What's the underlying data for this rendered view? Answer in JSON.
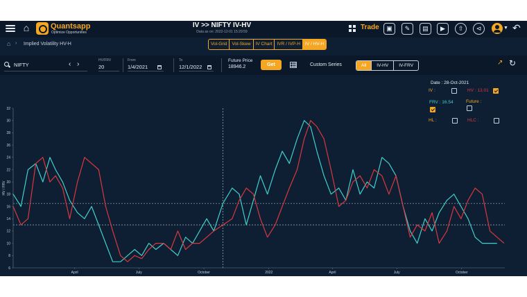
{
  "header": {
    "brand": "Quantsapp",
    "tagline": "Optimize Opportunities",
    "title": "IV >> NIFTY IV-HV",
    "data_as_on": "Data as on: 2022-12-01 15:29:59",
    "trade_label": "Trade",
    "icons": [
      "menu-icon",
      "home-icon",
      "grid-icon",
      "window-icon",
      "edit-icon",
      "chart-icon",
      "video-icon",
      "upload-icon",
      "share-icon",
      "user-icon",
      "back-icon"
    ]
  },
  "breadcrumb": {
    "label": "Implied Volatility HV-H"
  },
  "tabs": [
    {
      "label": "Vol-Grid",
      "active": false
    },
    {
      "label": "Vol-Skew",
      "active": false
    },
    {
      "label": "IV Chart",
      "active": false
    },
    {
      "label": "IVR / IVP-H",
      "active": false
    },
    {
      "label": "IV / HV-H",
      "active": true
    }
  ],
  "controls": {
    "symbol": "NIFTY",
    "hv_frv_label": "HV/FRV",
    "hv_frv_value": "20",
    "from_label": "From",
    "from_value": "1/4/2021",
    "to_label": "To",
    "to_value": "12/1/2022",
    "future_price_label": "Future Price",
    "future_price_value": "18946.2",
    "get_label": "Get",
    "custom_series_label": "Custom Series",
    "modes": [
      {
        "label": "All",
        "active": true
      },
      {
        "label": "IV-HV",
        "active": false
      },
      {
        "label": "IV-FRV",
        "active": false
      }
    ]
  },
  "legend": {
    "date": "Date : 28-Oct-2021",
    "iv": {
      "label": "IV :",
      "checked": false
    },
    "hv": {
      "label": "HV : 13.01",
      "checked": true
    },
    "frv": {
      "label": "FRV : 16.54",
      "checked": true
    },
    "future": {
      "label": "Future :",
      "checked": false
    },
    "hl": {
      "label": "HL :",
      "checked": false
    },
    "hlc": {
      "label": "HLC :",
      "checked": false
    }
  },
  "chart_data": {
    "type": "line",
    "ylabel": "HV / FRV",
    "ylim": [
      6,
      32
    ],
    "yticks": [
      6,
      8,
      10,
      12,
      14,
      16,
      18,
      20,
      22,
      24,
      26,
      28,
      30,
      32
    ],
    "xlabels": [
      "April",
      "July",
      "October",
      "2022",
      "April",
      "July",
      "October"
    ],
    "reference_lines": [
      16.5,
      13.0
    ],
    "cursor_date": "28-Oct-2021",
    "colors": {
      "frv": "#3fd1cc",
      "hv": "#d9383f",
      "reference": "#c6d0dc"
    },
    "series": [
      {
        "name": "FRV",
        "x": [
          "2021-01-04",
          "2021-01-15",
          "2021-01-25",
          "2021-02-05",
          "2021-02-15",
          "2021-02-25",
          "2021-03-05",
          "2021-03-15",
          "2021-03-25",
          "2021-04-05",
          "2021-04-15",
          "2021-04-25",
          "2021-05-05",
          "2021-05-15",
          "2021-05-25",
          "2021-06-05",
          "2021-06-15",
          "2021-06-25",
          "2021-07-05",
          "2021-07-15",
          "2021-07-25",
          "2021-08-05",
          "2021-08-15",
          "2021-08-25",
          "2021-09-05",
          "2021-09-15",
          "2021-09-25",
          "2021-10-05",
          "2021-10-15",
          "2021-10-28",
          "2021-11-10",
          "2021-11-20",
          "2021-11-30",
          "2021-12-10",
          "2021-12-20",
          "2021-12-30",
          "2022-01-10",
          "2022-01-20",
          "2022-01-30",
          "2022-02-10",
          "2022-02-20",
          "2022-03-01",
          "2022-03-10",
          "2022-03-20",
          "2022-03-30",
          "2022-04-10",
          "2022-04-20",
          "2022-04-30",
          "2022-05-10",
          "2022-05-20",
          "2022-05-30",
          "2022-06-10",
          "2022-06-20",
          "2022-06-30",
          "2022-07-10",
          "2022-07-20",
          "2022-07-30",
          "2022-08-10",
          "2022-08-20",
          "2022-08-30",
          "2022-09-10",
          "2022-09-20",
          "2022-09-30",
          "2022-10-10",
          "2022-10-20",
          "2022-10-30",
          "2022-11-10",
          "2022-11-20"
        ],
        "values": [
          18,
          16,
          22,
          23,
          20,
          24,
          22,
          20,
          17,
          15,
          14,
          16,
          13,
          10,
          7,
          7,
          8,
          9,
          8,
          10,
          9,
          10,
          9,
          8,
          11,
          10,
          12,
          14,
          12,
          16.5,
          19,
          18,
          13,
          17,
          21,
          18,
          22,
          25,
          23,
          27,
          30,
          29,
          25,
          21,
          18,
          19,
          17,
          22,
          18,
          20,
          19,
          24,
          23,
          21,
          16,
          12,
          10,
          14,
          12,
          15,
          17,
          18,
          16,
          14,
          11,
          10,
          10,
          10
        ]
      },
      {
        "name": "HV",
        "x": [
          "2021-01-04",
          "2021-01-15",
          "2021-01-25",
          "2021-02-05",
          "2021-02-15",
          "2021-02-25",
          "2021-03-05",
          "2021-03-15",
          "2021-03-25",
          "2021-04-05",
          "2021-04-15",
          "2021-04-25",
          "2021-05-05",
          "2021-05-15",
          "2021-05-25",
          "2021-06-05",
          "2021-06-15",
          "2021-06-25",
          "2021-07-05",
          "2021-07-15",
          "2021-07-25",
          "2021-08-05",
          "2021-08-15",
          "2021-08-25",
          "2021-09-05",
          "2021-09-15",
          "2021-09-25",
          "2021-10-05",
          "2021-10-15",
          "2021-10-28",
          "2021-11-10",
          "2021-11-20",
          "2021-11-30",
          "2021-12-10",
          "2021-12-20",
          "2021-12-30",
          "2022-01-10",
          "2022-01-20",
          "2022-01-30",
          "2022-02-10",
          "2022-02-20",
          "2022-03-01",
          "2022-03-10",
          "2022-03-20",
          "2022-03-30",
          "2022-04-10",
          "2022-04-20",
          "2022-04-30",
          "2022-05-10",
          "2022-05-20",
          "2022-05-30",
          "2022-06-10",
          "2022-06-20",
          "2022-06-30",
          "2022-07-10",
          "2022-07-20",
          "2022-07-30",
          "2022-08-10",
          "2022-08-20",
          "2022-08-30",
          "2022-09-10",
          "2022-09-20",
          "2022-09-30",
          "2022-10-10",
          "2022-10-20",
          "2022-10-30",
          "2022-11-10",
          "2022-11-20",
          "2022-11-30"
        ],
        "values": [
          16,
          13,
          14,
          23,
          24,
          20,
          21,
          19,
          14,
          20,
          24,
          23,
          22,
          16,
          12,
          8,
          7,
          8,
          7.5,
          9,
          10,
          10,
          9,
          12,
          9,
          10,
          10,
          11,
          12,
          13,
          14,
          17,
          19,
          18,
          14,
          11,
          13,
          16,
          19,
          22,
          27,
          30,
          29,
          27,
          22,
          16,
          17,
          20,
          21,
          19,
          22,
          21,
          18,
          21,
          16,
          11,
          13,
          12,
          15,
          10,
          12,
          16,
          14,
          17,
          19,
          18,
          12,
          11,
          10
        ]
      }
    ]
  }
}
